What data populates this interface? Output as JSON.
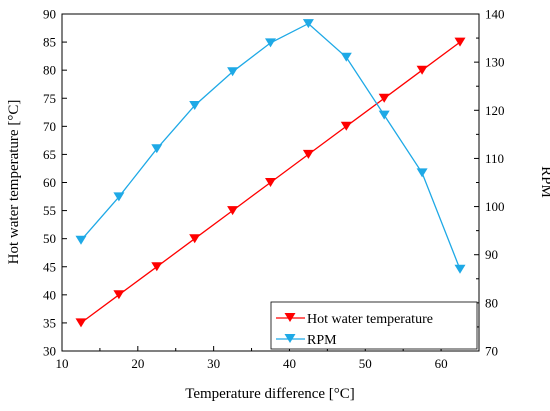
{
  "chart_data": {
    "type": "line",
    "xlabel": "Temperature difference [°C]",
    "ylabel_left": "Hot water temperature [°C]",
    "ylabel_right": "RPM",
    "xlim": [
      10,
      65
    ],
    "ylim_left": [
      30,
      90
    ],
    "ylim_right": [
      70,
      140
    ],
    "x_ticks": [
      "10",
      "20",
      "30",
      "40",
      "50",
      "60"
    ],
    "y_left_ticks": [
      "30",
      "35",
      "40",
      "45",
      "50",
      "55",
      "60",
      "65",
      "70",
      "75",
      "80",
      "85",
      "90"
    ],
    "y_right_ticks": [
      "70",
      "80",
      "90",
      "100",
      "110",
      "120",
      "130",
      "140"
    ],
    "legend_position": "bottom-right",
    "grid": false,
    "series": [
      {
        "name": "Hot water temperature",
        "axis": "left",
        "color": "#ff0000",
        "marker": "triangle-down",
        "x": [
          12.5,
          17.5,
          22.5,
          27.5,
          32.5,
          37.5,
          42.5,
          47.5,
          52.5,
          57.5,
          62.5
        ],
        "values": [
          35,
          40,
          45,
          50,
          55,
          60,
          65,
          70,
          75,
          80,
          85
        ]
      },
      {
        "name": "RPM",
        "axis": "right",
        "color": "#1ea9e6",
        "marker": "triangle-down",
        "x": [
          12.5,
          17.5,
          22.5,
          27.5,
          32.5,
          37.5,
          42.5,
          47.5,
          52.5,
          57.5,
          62.5
        ],
        "values": [
          93,
          102,
          112,
          121,
          128,
          134,
          138,
          131,
          119,
          107,
          87
        ]
      }
    ]
  }
}
